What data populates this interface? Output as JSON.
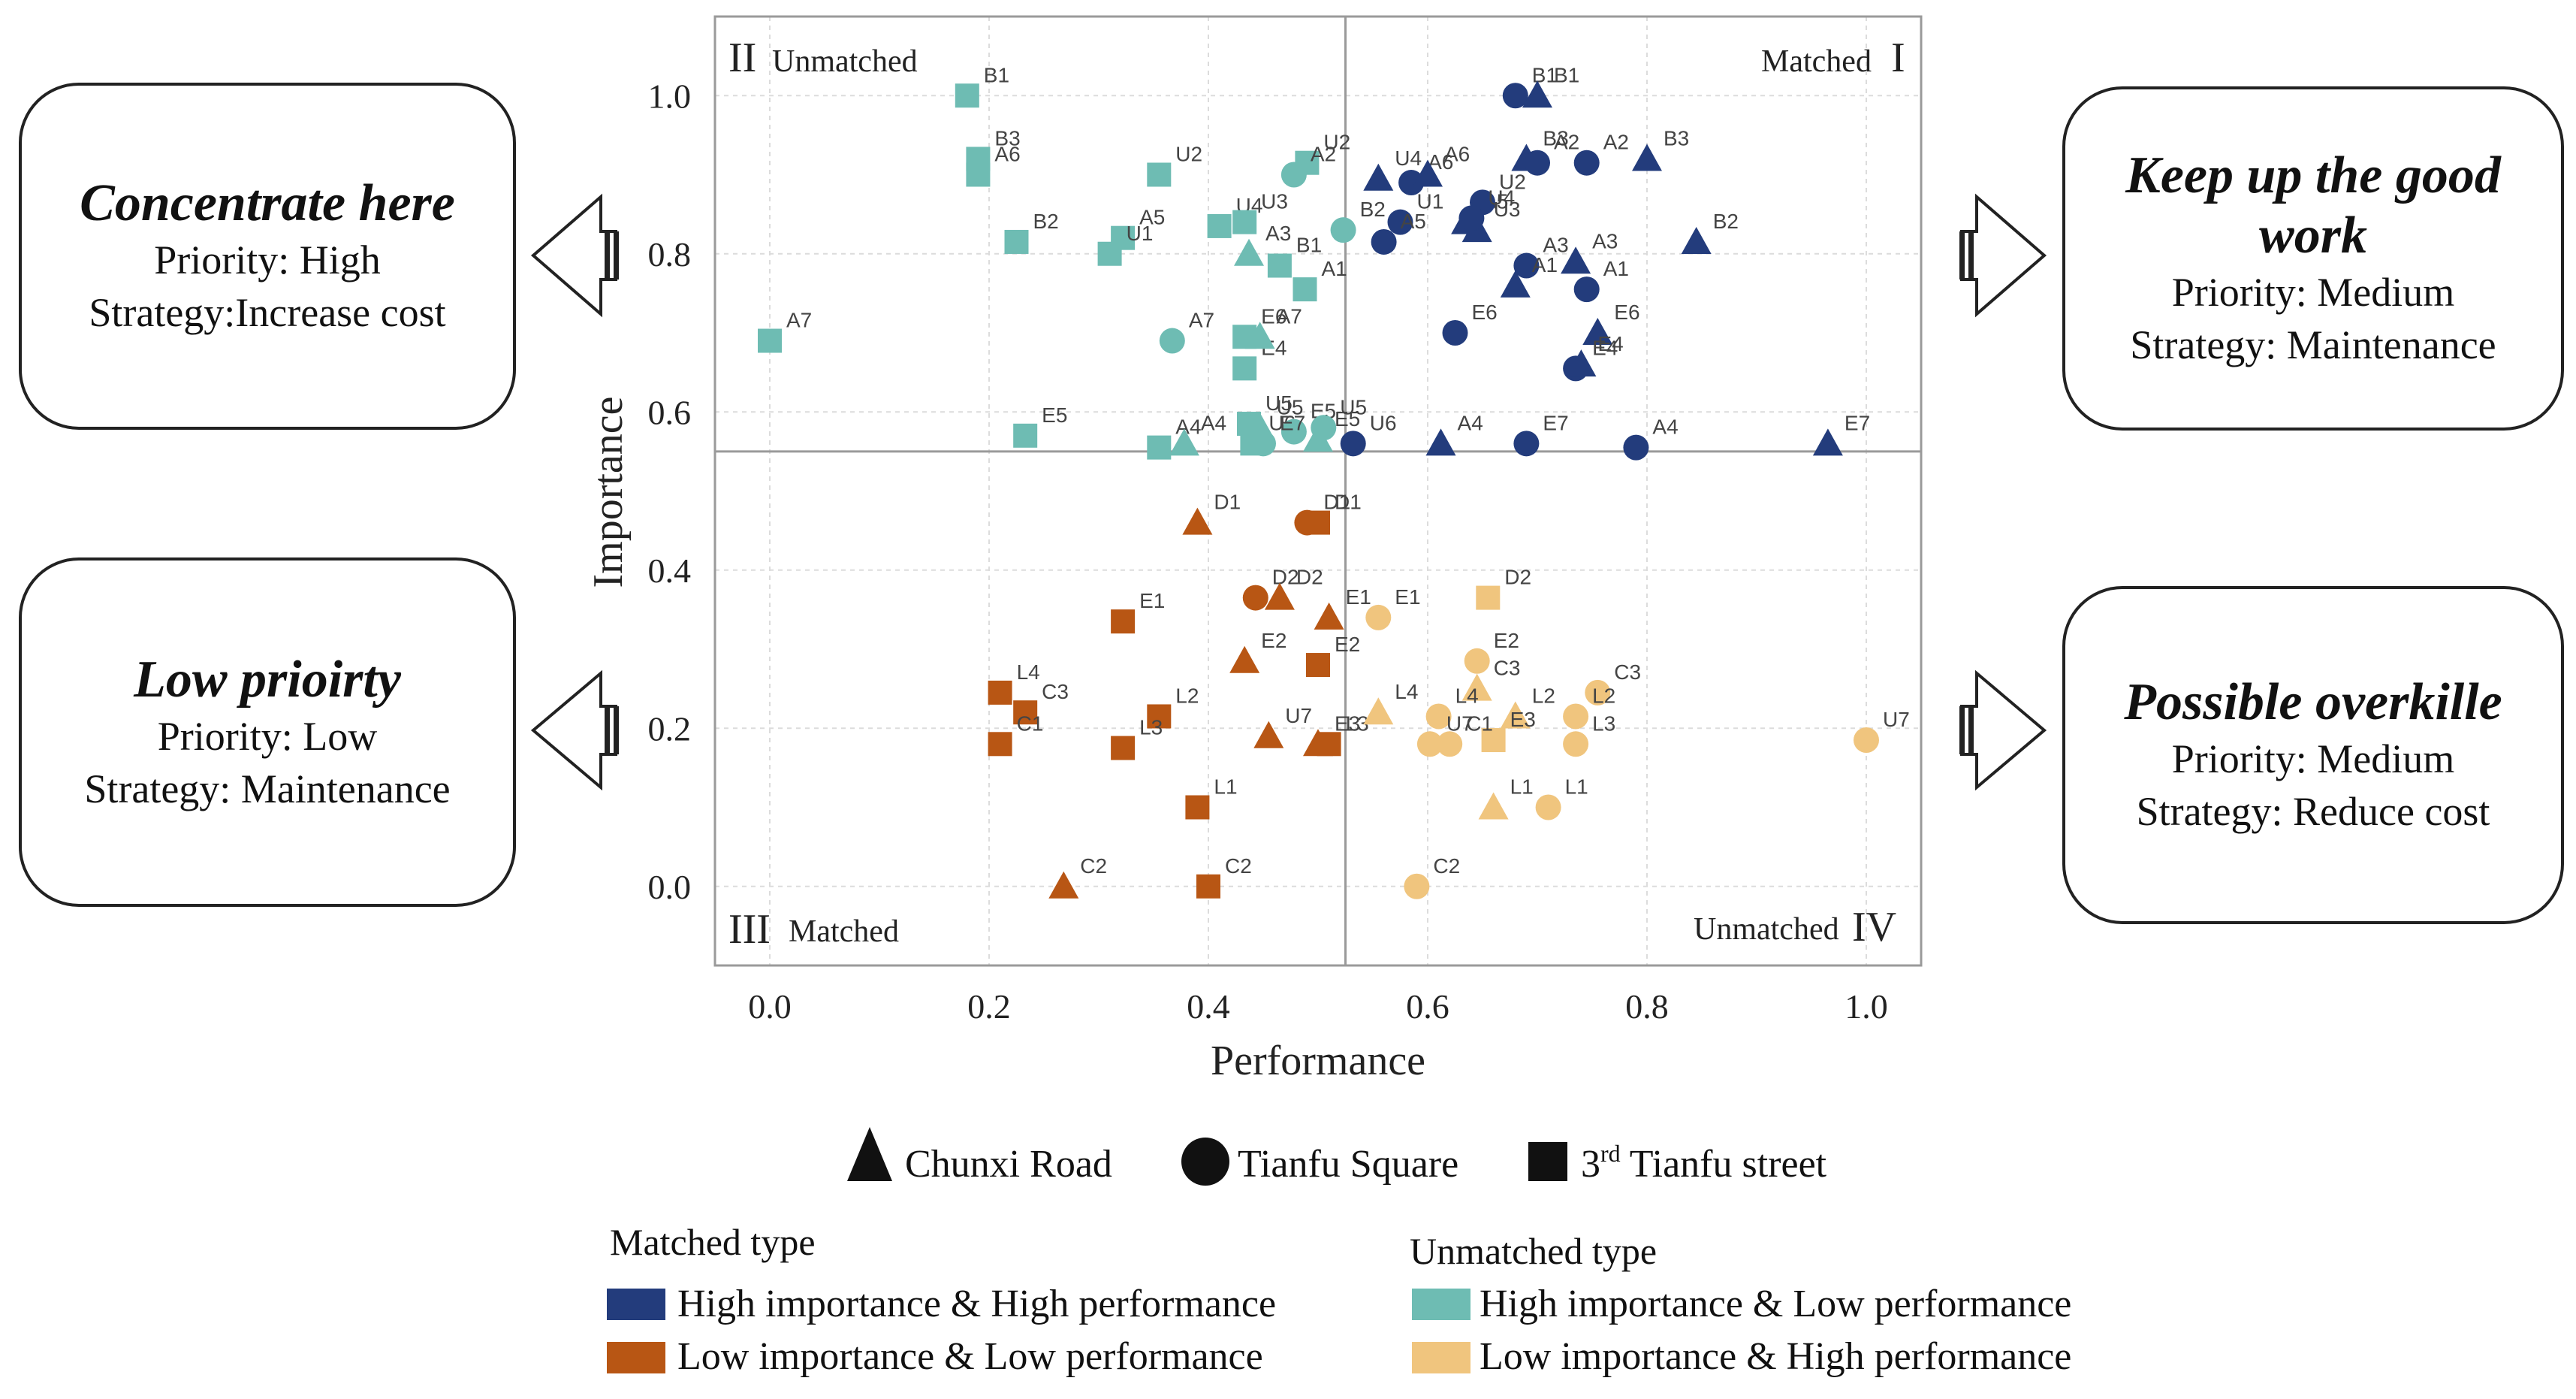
{
  "chart_data": {
    "type": "scatter",
    "xlabel": "Performance",
    "ylabel": "Importance",
    "xlim": [
      -0.05,
      1.05
    ],
    "ylim": [
      -0.1,
      1.1
    ],
    "xticks": [
      "0.0",
      "0.2",
      "0.4",
      "0.6",
      "0.8",
      "1.0"
    ],
    "yticks": [
      "0.0",
      "0.2",
      "0.4",
      "0.6",
      "0.8",
      "1.0"
    ],
    "xtick_values": [
      0,
      0.2,
      0.4,
      0.6,
      0.8,
      1.0
    ],
    "ytick_values": [
      0,
      0.2,
      0.4,
      0.6,
      0.8,
      1.0
    ],
    "quadrant_split": {
      "x": 0.525,
      "y": 0.55
    },
    "quadrants": {
      "q2_numeral": "II",
      "q2_label": "Unmatched",
      "q1_numeral": "I",
      "q1_label": "Matched",
      "q3_numeral": "III",
      "q3_label": "Matched",
      "q4_numeral": "IV",
      "q4_label": "Unmatched"
    },
    "colors": {
      "hihi": "#233c7c",
      "lolo": "#b85614",
      "hilo": "#6ebcb3",
      "lohi": "#f0c57e"
    },
    "points": [
      {
        "label": "B1",
        "x": 0.18,
        "y": 1.0,
        "shape": "square",
        "cat": "hilo"
      },
      {
        "label": "B3",
        "x": 0.19,
        "y": 0.92,
        "shape": "square",
        "cat": "hilo"
      },
      {
        "label": "A6",
        "x": 0.19,
        "y": 0.9,
        "shape": "square",
        "cat": "hilo"
      },
      {
        "label": "U2",
        "x": 0.355,
        "y": 0.9,
        "shape": "square",
        "cat": "hilo"
      },
      {
        "label": "U4",
        "x": 0.41,
        "y": 0.835,
        "shape": "square",
        "cat": "hilo"
      },
      {
        "label": "B2",
        "x": 0.225,
        "y": 0.815,
        "shape": "square",
        "cat": "hilo"
      },
      {
        "label": "A5",
        "x": 0.322,
        "y": 0.82,
        "shape": "square",
        "cat": "hilo"
      },
      {
        "label": "U1",
        "x": 0.31,
        "y": 0.8,
        "shape": "square",
        "cat": "hilo"
      },
      {
        "label": "U3",
        "x": 0.433,
        "y": 0.84,
        "shape": "square",
        "cat": "hilo"
      },
      {
        "label": "B1",
        "x": 0.465,
        "y": 0.785,
        "shape": "square",
        "cat": "hilo"
      },
      {
        "label": "A1",
        "x": 0.488,
        "y": 0.755,
        "shape": "square",
        "cat": "hilo"
      },
      {
        "label": "A7",
        "x": 0.0,
        "y": 0.69,
        "shape": "square",
        "cat": "hilo"
      },
      {
        "label": "E6",
        "x": 0.433,
        "y": 0.695,
        "shape": "square",
        "cat": "hilo"
      },
      {
        "label": "E4",
        "x": 0.433,
        "y": 0.655,
        "shape": "square",
        "cat": "hilo"
      },
      {
        "label": "E5",
        "x": 0.233,
        "y": 0.57,
        "shape": "square",
        "cat": "hilo"
      },
      {
        "label": "A4",
        "x": 0.355,
        "y": 0.555,
        "shape": "square",
        "cat": "hilo"
      },
      {
        "label": "U5",
        "x": 0.437,
        "y": 0.585,
        "shape": "square",
        "cat": "hilo"
      },
      {
        "label": "U6",
        "x": 0.44,
        "y": 0.56,
        "shape": "square",
        "cat": "hilo"
      },
      {
        "label": "U2",
        "x": 0.49,
        "y": 0.915,
        "shape": "square",
        "cat": "hilo"
      },
      {
        "label": "A2",
        "x": 0.478,
        "y": 0.9,
        "shape": "circle",
        "cat": "hilo"
      },
      {
        "label": "B2",
        "x": 0.523,
        "y": 0.83,
        "shape": "circle",
        "cat": "hilo"
      },
      {
        "label": "A3",
        "x": 0.437,
        "y": 0.8,
        "shape": "triangle",
        "cat": "hilo"
      },
      {
        "label": "A7",
        "x": 0.367,
        "y": 0.69,
        "shape": "circle",
        "cat": "hilo"
      },
      {
        "label": "A7",
        "x": 0.447,
        "y": 0.695,
        "shape": "triangle",
        "cat": "hilo"
      },
      {
        "label": "A4",
        "x": 0.378,
        "y": 0.56,
        "shape": "triangle",
        "cat": "hilo"
      },
      {
        "label": "U5",
        "x": 0.447,
        "y": 0.58,
        "shape": "triangle",
        "cat": "hilo"
      },
      {
        "label": "E5",
        "x": 0.478,
        "y": 0.575,
        "shape": "circle",
        "cat": "hilo"
      },
      {
        "label": "U5",
        "x": 0.505,
        "y": 0.58,
        "shape": "circle",
        "cat": "hilo"
      },
      {
        "label": "E7",
        "x": 0.45,
        "y": 0.56,
        "shape": "circle",
        "cat": "hilo"
      },
      {
        "label": "E5",
        "x": 0.5,
        "y": 0.565,
        "shape": "triangle",
        "cat": "hilo"
      },
      {
        "label": "B1",
        "x": 0.68,
        "y": 1.0,
        "shape": "circle",
        "cat": "hihi"
      },
      {
        "label": "B1",
        "x": 0.7,
        "y": 1.0,
        "shape": "triangle",
        "cat": "hihi"
      },
      {
        "label": "B3",
        "x": 0.69,
        "y": 0.92,
        "shape": "triangle",
        "cat": "hihi"
      },
      {
        "label": "A2",
        "x": 0.745,
        "y": 0.915,
        "shape": "circle",
        "cat": "hihi"
      },
      {
        "label": "B3",
        "x": 0.8,
        "y": 0.92,
        "shape": "triangle",
        "cat": "hihi"
      },
      {
        "label": "A2",
        "x": 0.7,
        "y": 0.915,
        "shape": "circle",
        "cat": "hihi"
      },
      {
        "label": "A6",
        "x": 0.585,
        "y": 0.89,
        "shape": "circle",
        "cat": "hihi"
      },
      {
        "label": "A6",
        "x": 0.6,
        "y": 0.9,
        "shape": "triangle",
        "cat": "hihi"
      },
      {
        "label": "U4",
        "x": 0.555,
        "y": 0.895,
        "shape": "triangle",
        "cat": "hihi"
      },
      {
        "label": "U1",
        "x": 0.575,
        "y": 0.84,
        "shape": "circle",
        "cat": "hihi"
      },
      {
        "label": "A5",
        "x": 0.56,
        "y": 0.815,
        "shape": "circle",
        "cat": "hihi"
      },
      {
        "label": "A5",
        "x": 0.635,
        "y": 0.84,
        "shape": "triangle",
        "cat": "hihi"
      },
      {
        "label": "U3",
        "x": 0.645,
        "y": 0.83,
        "shape": "triangle",
        "cat": "hihi"
      },
      {
        "label": "A3",
        "x": 0.69,
        "y": 0.785,
        "shape": "circle",
        "cat": "hihi"
      },
      {
        "label": "A3",
        "x": 0.735,
        "y": 0.79,
        "shape": "triangle",
        "cat": "hihi"
      },
      {
        "label": "B2",
        "x": 0.845,
        "y": 0.815,
        "shape": "triangle",
        "cat": "hihi"
      },
      {
        "label": "A1",
        "x": 0.745,
        "y": 0.755,
        "shape": "circle",
        "cat": "hihi"
      },
      {
        "label": "A1",
        "x": 0.68,
        "y": 0.76,
        "shape": "triangle",
        "cat": "hihi"
      },
      {
        "label": "E6",
        "x": 0.625,
        "y": 0.7,
        "shape": "circle",
        "cat": "hihi"
      },
      {
        "label": "E6",
        "x": 0.755,
        "y": 0.7,
        "shape": "triangle",
        "cat": "hihi"
      },
      {
        "label": "E4",
        "x": 0.735,
        "y": 0.655,
        "shape": "circle",
        "cat": "hihi"
      },
      {
        "label": "E4",
        "x": 0.74,
        "y": 0.66,
        "shape": "triangle",
        "cat": "hihi"
      },
      {
        "label": "E7",
        "x": 0.69,
        "y": 0.56,
        "shape": "circle",
        "cat": "hihi"
      },
      {
        "label": "A4",
        "x": 0.79,
        "y": 0.555,
        "shape": "circle",
        "cat": "hihi"
      },
      {
        "label": "A4",
        "x": 0.612,
        "y": 0.56,
        "shape": "triangle",
        "cat": "hihi"
      },
      {
        "label": "E7",
        "x": 0.965,
        "y": 0.56,
        "shape": "triangle",
        "cat": "hihi"
      },
      {
        "label": "U6",
        "x": 0.532,
        "y": 0.56,
        "shape": "circle",
        "cat": "hihi"
      },
      {
        "label": "U2",
        "x": 0.65,
        "y": 0.865,
        "shape": "circle",
        "cat": "hihi"
      },
      {
        "label": "U4",
        "x": 0.64,
        "y": 0.845,
        "shape": "circle",
        "cat": "hihi"
      },
      {
        "label": "D1",
        "x": 0.39,
        "y": 0.46,
        "shape": "triangle",
        "cat": "lolo"
      },
      {
        "label": "D1",
        "x": 0.49,
        "y": 0.46,
        "shape": "circle",
        "cat": "lolo"
      },
      {
        "label": "D1",
        "x": 0.5,
        "y": 0.46,
        "shape": "square",
        "cat": "lolo"
      },
      {
        "label": "D2",
        "x": 0.443,
        "y": 0.365,
        "shape": "circle",
        "cat": "lolo"
      },
      {
        "label": "D2",
        "x": 0.465,
        "y": 0.365,
        "shape": "triangle",
        "cat": "lolo"
      },
      {
        "label": "E1",
        "x": 0.322,
        "y": 0.335,
        "shape": "square",
        "cat": "lolo"
      },
      {
        "label": "E1",
        "x": 0.51,
        "y": 0.34,
        "shape": "triangle",
        "cat": "lolo"
      },
      {
        "label": "E2",
        "x": 0.433,
        "y": 0.285,
        "shape": "triangle",
        "cat": "lolo"
      },
      {
        "label": "E2",
        "x": 0.5,
        "y": 0.28,
        "shape": "square",
        "cat": "lolo"
      },
      {
        "label": "L4",
        "x": 0.21,
        "y": 0.245,
        "shape": "square",
        "cat": "lolo"
      },
      {
        "label": "C3",
        "x": 0.233,
        "y": 0.22,
        "shape": "square",
        "cat": "lolo"
      },
      {
        "label": "C1",
        "x": 0.21,
        "y": 0.18,
        "shape": "square",
        "cat": "lolo"
      },
      {
        "label": "L2",
        "x": 0.355,
        "y": 0.215,
        "shape": "square",
        "cat": "lolo"
      },
      {
        "label": "L3",
        "x": 0.322,
        "y": 0.175,
        "shape": "square",
        "cat": "lolo"
      },
      {
        "label": "U7",
        "x": 0.455,
        "y": 0.19,
        "shape": "triangle",
        "cat": "lolo"
      },
      {
        "label": "E3",
        "x": 0.5,
        "y": 0.18,
        "shape": "triangle",
        "cat": "lolo"
      },
      {
        "label": "L3",
        "x": 0.51,
        "y": 0.18,
        "shape": "square",
        "cat": "lolo"
      },
      {
        "label": "L1",
        "x": 0.39,
        "y": 0.1,
        "shape": "square",
        "cat": "lolo"
      },
      {
        "label": "C2",
        "x": 0.268,
        "y": 0.0,
        "shape": "triangle",
        "cat": "lolo"
      },
      {
        "label": "C2",
        "x": 0.4,
        "y": 0.0,
        "shape": "square",
        "cat": "lolo"
      },
      {
        "label": "D2",
        "x": 0.655,
        "y": 0.365,
        "shape": "square",
        "cat": "lohi"
      },
      {
        "label": "E1",
        "x": 0.555,
        "y": 0.34,
        "shape": "circle",
        "cat": "lohi"
      },
      {
        "label": "E2",
        "x": 0.645,
        "y": 0.285,
        "shape": "circle",
        "cat": "lohi"
      },
      {
        "label": "C3",
        "x": 0.645,
        "y": 0.25,
        "shape": "triangle",
        "cat": "lohi"
      },
      {
        "label": "C3",
        "x": 0.755,
        "y": 0.245,
        "shape": "circle",
        "cat": "lohi"
      },
      {
        "label": "L4",
        "x": 0.555,
        "y": 0.22,
        "shape": "triangle",
        "cat": "lohi"
      },
      {
        "label": "L4",
        "x": 0.61,
        "y": 0.215,
        "shape": "circle",
        "cat": "lohi"
      },
      {
        "label": "L2",
        "x": 0.68,
        "y": 0.215,
        "shape": "triangle",
        "cat": "lohi"
      },
      {
        "label": "L2",
        "x": 0.735,
        "y": 0.215,
        "shape": "circle",
        "cat": "lohi"
      },
      {
        "label": "L3",
        "x": 0.735,
        "y": 0.18,
        "shape": "circle",
        "cat": "lohi"
      },
      {
        "label": "E3",
        "x": 0.66,
        "y": 0.185,
        "shape": "square",
        "cat": "lohi"
      },
      {
        "label": "U7",
        "x": 0.602,
        "y": 0.18,
        "shape": "circle",
        "cat": "lohi"
      },
      {
        "label": "C1",
        "x": 0.62,
        "y": 0.18,
        "shape": "circle",
        "cat": "lohi"
      },
      {
        "label": "U7",
        "x": 1.0,
        "y": 0.185,
        "shape": "circle",
        "cat": "lohi"
      },
      {
        "label": "L1",
        "x": 0.66,
        "y": 0.1,
        "shape": "triangle",
        "cat": "lohi"
      },
      {
        "label": "L1",
        "x": 0.71,
        "y": 0.1,
        "shape": "circle",
        "cat": "lohi"
      },
      {
        "label": "C2",
        "x": 0.59,
        "y": 0.0,
        "shape": "circle",
        "cat": "lohi"
      }
    ]
  },
  "boxes": {
    "tl": {
      "title": "Concentrate here",
      "line1": "Priority: High",
      "line2": "Strategy:Increase  cost"
    },
    "tr": {
      "title": "Keep up the good work",
      "line1": "Priority: Medium",
      "line2": "Strategy: Maintenance"
    },
    "bl": {
      "title": "Low prioirty",
      "line1": "Priority: Low",
      "line2": "Strategy: Maintenance"
    },
    "br": {
      "title": "Possible overkille",
      "line1": "Priority: Medium",
      "line2": "Strategy: Reduce cost"
    }
  },
  "legend": {
    "shapes": {
      "triangle": "Chunxi Road",
      "circle": "Tianfu Square",
      "square_prefix": "3",
      "square_sup": "rd",
      "square_suffix": " Tianfu street"
    },
    "matched_title": "Matched type",
    "unmatched_title": "Unmatched type",
    "hihi": "High importance & High performance",
    "lolo": "Low importance & Low performance",
    "hilo": "High importance & Low performance",
    "lohi": "Low importance & High performance"
  }
}
